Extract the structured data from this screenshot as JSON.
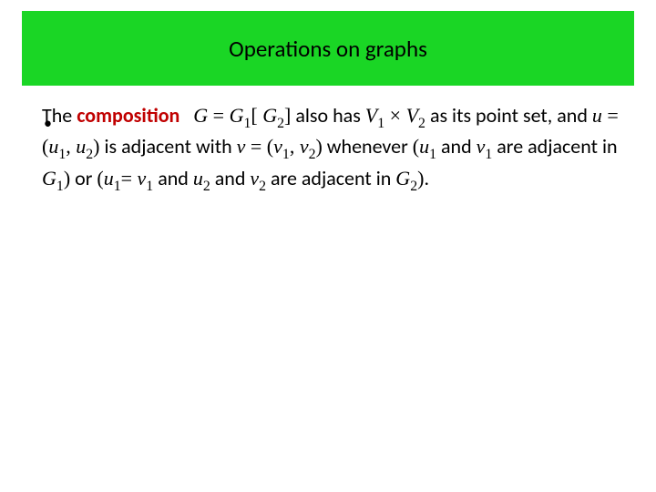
{
  "title_bar": {
    "background_color": "#1ad625",
    "title": "Operations on graphs",
    "title_fontsize": 25,
    "title_color": "#000000"
  },
  "body": {
    "text_color": "#000000",
    "fontsize": 22,
    "composition_color": "#c00000",
    "parts": {
      "t0": "The ",
      "composition": "composition",
      "t1": " also has ",
      "t2": " as its point set, and ",
      "t3": " is adjacent with ",
      "t4": " whenever ",
      "t5": " and ",
      "t6": " are adjacent in ",
      "t7": " or ",
      "t8": " and ",
      "t9": " and ",
      "t10": " are adjacent in ",
      "period": "."
    },
    "math": {
      "G": "G",
      "eq": " = ",
      "G1": "G",
      "s1": "1",
      "lbr": "[ ",
      "G2": "G",
      "s2": "2",
      "rbr": "]",
      "V1": "V",
      "V1s": "1",
      "times": " × ",
      "V2": "V",
      "V2s": "2",
      "u": "u",
      "ueq": " = (",
      "u1": "u",
      "u1s": "1",
      "comma1": ", ",
      "u2": "u",
      "u2s": "2",
      "rp1": ")",
      "v": "v",
      "veq": " = (",
      "v1": "v",
      "v1s": "1",
      "comma2": ", ",
      "v2": "v",
      "v2s": "2",
      "rp2": ")",
      "lp3": "(",
      "au1": "u",
      "au1s": "1",
      "av1": "v",
      "av1s": "1",
      "aG1": "G",
      "aG1s": "1",
      "rp3": ")",
      "lp4": "(",
      "bu1": "u",
      "bu1s": "1",
      "eqv1": "= ",
      "bv1": "v",
      "bv1s": "1",
      "cu2": "u",
      "cu2s": "2",
      "cv2": "v",
      "cv2s": "2",
      "cG2": "G",
      "cG2s": "2",
      "rp4": ")"
    }
  }
}
